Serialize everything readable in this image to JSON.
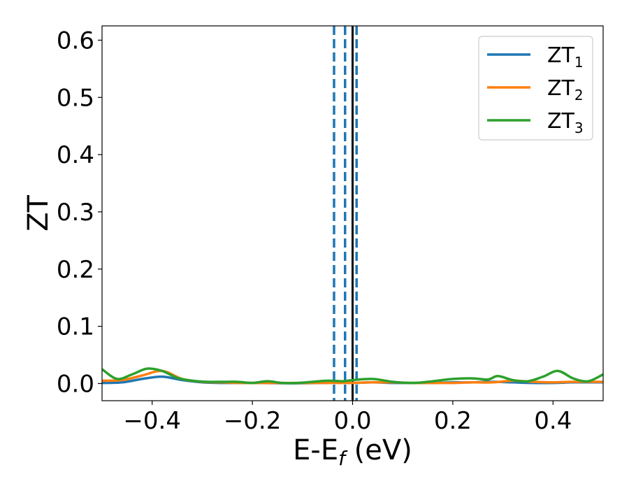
{
  "chart_data": {
    "type": "line",
    "xlabel": "E-E",
    "xlabel_sub": "f",
    "xlabel_unit": " (eV)",
    "ylabel": "ZT",
    "xlim": [
      -0.5,
      0.5
    ],
    "ylim": [
      -0.03,
      0.625
    ],
    "x_ticks": [
      -0.4,
      -0.2,
      0.0,
      0.2,
      0.4
    ],
    "x_tick_labels": [
      "−0.4",
      "−0.2",
      "0.0",
      "0.2",
      "0.4"
    ],
    "y_ticks": [
      0.0,
      0.1,
      0.2,
      0.3,
      0.4,
      0.5,
      0.6
    ],
    "y_tick_labels": [
      "0.0",
      "0.1",
      "0.2",
      "0.3",
      "0.4",
      "0.5",
      "0.6"
    ],
    "grid": false,
    "legend_position": "top-right",
    "vlines": [
      {
        "x": -0.037,
        "style": "dashed",
        "color": "#1f77b4"
      },
      {
        "x": -0.015,
        "style": "dashed",
        "color": "#1f77b4"
      },
      {
        "x": 0.008,
        "style": "dashed",
        "color": "#1f77b4"
      },
      {
        "x": 0.0,
        "style": "solid",
        "color": "#000000"
      }
    ],
    "series": [
      {
        "name": "ZT",
        "name_sub": "1",
        "color": "#1f77b4",
        "x": [
          -0.5,
          -0.46,
          -0.42,
          -0.38,
          -0.34,
          -0.3,
          -0.26,
          -0.22,
          -0.18,
          -0.14,
          -0.1,
          -0.06,
          -0.02,
          0.0,
          0.04,
          0.08,
          0.12,
          0.16,
          0.2,
          0.24,
          0.28,
          0.32,
          0.36,
          0.4,
          0.44,
          0.48,
          0.5
        ],
        "y": [
          0.001,
          0.002,
          0.008,
          0.012,
          0.006,
          0.002,
          0.001,
          0.001,
          0.001,
          0.0005,
          0.0005,
          0.001,
          0.002,
          0.001,
          0.002,
          0.001,
          0.001,
          0.001,
          0.002,
          0.002,
          0.003,
          0.002,
          0.001,
          0.001,
          0.002,
          0.002,
          0.002
        ]
      },
      {
        "name": "ZT",
        "name_sub": "2",
        "color": "#ff7f0e",
        "x": [
          -0.5,
          -0.46,
          -0.42,
          -0.38,
          -0.34,
          -0.3,
          -0.26,
          -0.22,
          -0.18,
          -0.14,
          -0.1,
          -0.06,
          -0.02,
          0.0,
          0.04,
          0.08,
          0.12,
          0.16,
          0.2,
          0.24,
          0.28,
          0.32,
          0.36,
          0.4,
          0.44,
          0.48,
          0.5
        ],
        "y": [
          0.005,
          0.006,
          0.014,
          0.022,
          0.008,
          0.003,
          0.002,
          0.001,
          0.001,
          0.001,
          0.001,
          0.001,
          0.001,
          0.001,
          0.002,
          0.002,
          0.001,
          0.001,
          0.001,
          0.002,
          0.002,
          0.005,
          0.003,
          0.002,
          0.003,
          0.003,
          0.003
        ]
      },
      {
        "name": "ZT",
        "name_sub": "3",
        "color": "#2ca02c",
        "x": [
          -0.5,
          -0.47,
          -0.44,
          -0.41,
          -0.38,
          -0.35,
          -0.32,
          -0.29,
          -0.26,
          -0.23,
          -0.2,
          -0.17,
          -0.14,
          -0.11,
          -0.08,
          -0.05,
          -0.02,
          0.0,
          0.04,
          0.08,
          0.12,
          0.16,
          0.2,
          0.24,
          0.27,
          0.29,
          0.32,
          0.35,
          0.38,
          0.41,
          0.44,
          0.47,
          0.5
        ],
        "y": [
          0.025,
          0.008,
          0.016,
          0.026,
          0.022,
          0.01,
          0.005,
          0.003,
          0.003,
          0.003,
          0.001,
          0.004,
          0.001,
          0.001,
          0.003,
          0.005,
          0.004,
          0.006,
          0.008,
          0.003,
          0.001,
          0.004,
          0.008,
          0.009,
          0.007,
          0.013,
          0.006,
          0.004,
          0.012,
          0.022,
          0.009,
          0.004,
          0.016
        ]
      }
    ]
  }
}
